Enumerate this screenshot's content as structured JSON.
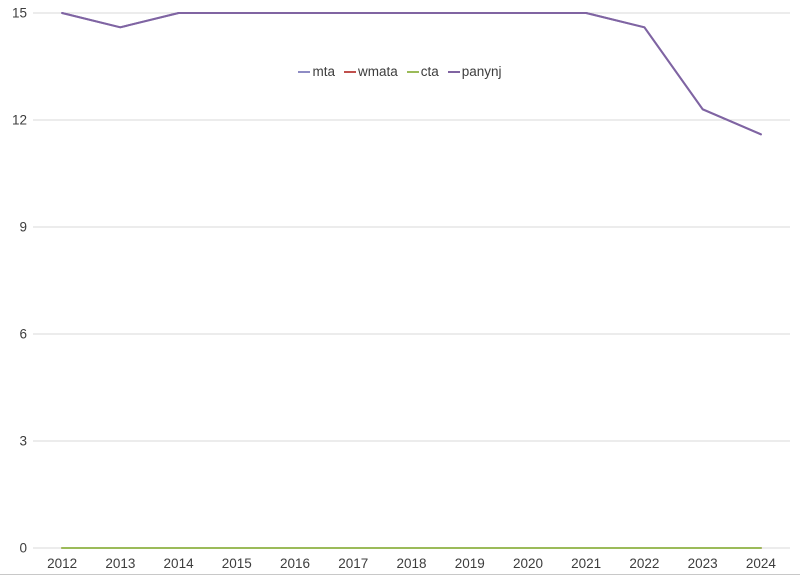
{
  "chart_data": {
    "type": "line",
    "title": "",
    "xlabel": "",
    "ylabel": "",
    "x": [
      2012,
      2013,
      2014,
      2015,
      2016,
      2017,
      2018,
      2019,
      2020,
      2021,
      2022,
      2023,
      2024
    ],
    "series": [
      {
        "name": "mta",
        "color": "#8e8cc4",
        "values": [
          15,
          14.6,
          15,
          15,
          15,
          15,
          15,
          15,
          15,
          15,
          14.6,
          12.3,
          11.6
        ]
      },
      {
        "name": "wmata",
        "color": "#c0504d",
        "values": [
          0,
          0,
          0,
          0,
          0,
          0,
          0,
          0,
          0,
          0,
          0,
          0,
          0
        ]
      },
      {
        "name": "cta",
        "color": "#9bbb59",
        "values": [
          0,
          0,
          0,
          0,
          0,
          0,
          0,
          0,
          0,
          0,
          0,
          0,
          0
        ]
      },
      {
        "name": "panynj",
        "color": "#8064a2",
        "values": [
          15,
          14.6,
          15,
          15,
          15,
          15,
          15,
          15,
          15,
          15,
          14.6,
          12.3,
          11.6
        ]
      }
    ],
    "ylim": [
      0,
      15
    ],
    "yticks": [
      0,
      3,
      6,
      9,
      12,
      15
    ],
    "grid": true,
    "legend_position": "top-center"
  },
  "colors": {
    "background": "#ffffff",
    "gridline": "#d9d9d9",
    "tick_label": "#3d3d3d",
    "bottom_divider": "#c8c8c8"
  }
}
